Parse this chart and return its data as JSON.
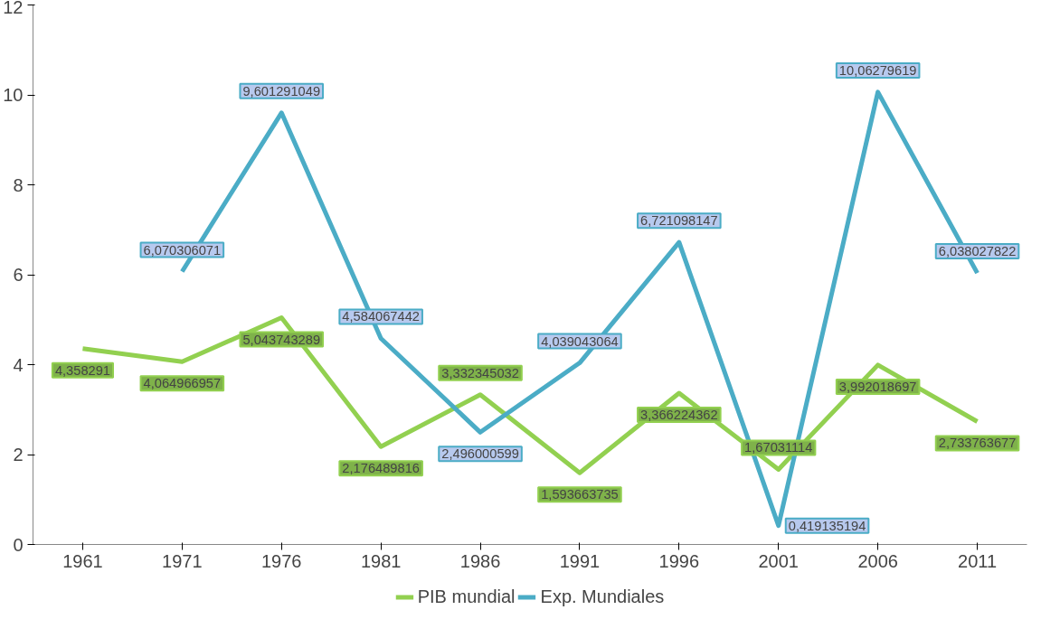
{
  "chart_data": {
    "type": "line",
    "categories": [
      "1961",
      "1971",
      "1976",
      "1981",
      "1986",
      "1991",
      "1996",
      "2001",
      "2006",
      "2011"
    ],
    "series": [
      {
        "name": "PIB mundial",
        "color": "#92d050",
        "values": [
          4.358291,
          4.064966957,
          5.043743289,
          2.176489816,
          3.332345032,
          1.593663735,
          3.366224362,
          1.67031114,
          3.992018697,
          2.733763677
        ],
        "value_labels": [
          "4,358291",
          "4,064966957",
          "5,043743289",
          "2,176489816",
          "3,332345032",
          "1,593663735",
          "3,366224362",
          "1,67031114",
          "3,992018697",
          "2,733763677"
        ]
      },
      {
        "name": "Exp. Mundiales",
        "color": "#4bacc6",
        "values": [
          null,
          6.070306071,
          9.601291049,
          4.584067442,
          2.496000599,
          4.039043064,
          6.721098147,
          0.419135194,
          10.06279619,
          6.038027822
        ],
        "value_labels": [
          null,
          "6,070306071",
          "9,601291049",
          "4,584067442",
          "2,496000599",
          "4,039043064",
          "6,721098147",
          "0,419135194",
          "10,06279619",
          "6,038027822"
        ]
      }
    ],
    "ylim": [
      0,
      12
    ],
    "yticks": [
      0,
      2,
      4,
      6,
      8,
      10,
      12
    ],
    "grid": false,
    "legend": "bottom",
    "marker": "none",
    "line_style": "solid"
  }
}
